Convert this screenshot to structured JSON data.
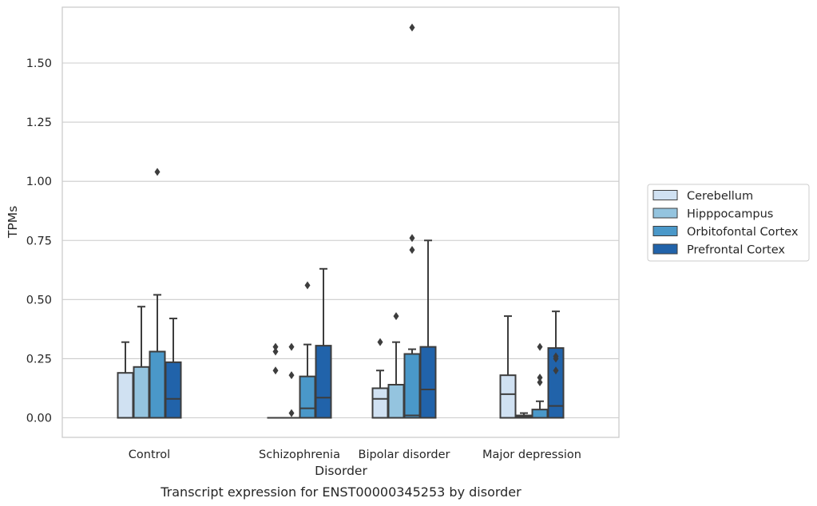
{
  "chart_data": {
    "type": "box",
    "title": "",
    "caption": "Transcript expression for ENST00000345253 by disorder",
    "xlabel": "Disorder",
    "ylabel": "TPMs",
    "ylim": [
      -0.08,
      1.74
    ],
    "yticks": [
      0.0,
      0.25,
      0.5,
      0.75,
      1.0,
      1.25,
      1.5
    ],
    "ytick_labels": [
      "0.00",
      "0.25",
      "0.50",
      "0.75",
      "1.00",
      "1.25",
      "1.50"
    ],
    "categories": [
      "Control",
      "Schizophrenia",
      "Bipolar disorder",
      "Major depression"
    ],
    "grid": "horizontal",
    "legend": "right",
    "series": [
      {
        "name": "Cerebellum",
        "color": "#d0e1f2",
        "boxes": [
          {
            "q1": 0.0,
            "median": 0.0,
            "q3": 0.19,
            "whislo": 0.0,
            "whishi": 0.32,
            "fliers": []
          },
          {
            "q1": 0.0,
            "median": 0.0,
            "q3": 0.0,
            "whislo": 0.0,
            "whishi": 0.0,
            "fliers": [
              0.3,
              0.28,
              0.2
            ]
          },
          {
            "q1": 0.0,
            "median": 0.08,
            "q3": 0.125,
            "whislo": 0.0,
            "whishi": 0.2,
            "fliers": [
              0.32
            ]
          },
          {
            "q1": 0.0,
            "median": 0.1,
            "q3": 0.18,
            "whislo": 0.0,
            "whishi": 0.43,
            "fliers": []
          }
        ]
      },
      {
        "name": "Hipppocampus",
        "color": "#94c4df",
        "boxes": [
          {
            "q1": 0.0,
            "median": 0.0,
            "q3": 0.215,
            "whislo": 0.0,
            "whishi": 0.47,
            "fliers": []
          },
          {
            "q1": 0.0,
            "median": 0.0,
            "q3": 0.0,
            "whislo": 0.0,
            "whishi": 0.0,
            "fliers": [
              0.3,
              0.18,
              0.02
            ]
          },
          {
            "q1": 0.0,
            "median": 0.0,
            "q3": 0.14,
            "whislo": 0.0,
            "whishi": 0.32,
            "fliers": [
              0.43
            ]
          },
          {
            "q1": 0.0,
            "median": 0.005,
            "q3": 0.01,
            "whislo": 0.0,
            "whishi": 0.02,
            "fliers": []
          }
        ]
      },
      {
        "name": "Orbitofontal Cortex",
        "color": "#4a98c9",
        "boxes": [
          {
            "q1": 0.0,
            "median": 0.0,
            "q3": 0.28,
            "whislo": 0.0,
            "whishi": 0.52,
            "fliers": [
              1.04
            ]
          },
          {
            "q1": 0.0,
            "median": 0.04,
            "q3": 0.175,
            "whislo": 0.0,
            "whishi": 0.31,
            "fliers": [
              0.56
            ]
          },
          {
            "q1": 0.0,
            "median": 0.01,
            "q3": 0.27,
            "whislo": 0.0,
            "whishi": 0.29,
            "fliers": [
              0.76,
              0.71,
              1.65
            ]
          },
          {
            "q1": 0.0,
            "median": 0.0,
            "q3": 0.035,
            "whislo": 0.0,
            "whishi": 0.07,
            "fliers": [
              0.3,
              0.17,
              0.15
            ]
          }
        ]
      },
      {
        "name": "Prefrontal Cortex",
        "color": "#2163aa",
        "boxes": [
          {
            "q1": 0.0,
            "median": 0.08,
            "q3": 0.235,
            "whislo": 0.0,
            "whishi": 0.42,
            "fliers": []
          },
          {
            "q1": 0.0,
            "median": 0.085,
            "q3": 0.305,
            "whislo": 0.0,
            "whishi": 0.63,
            "fliers": []
          },
          {
            "q1": 0.0,
            "median": 0.12,
            "q3": 0.3,
            "whislo": 0.0,
            "whishi": 0.75,
            "fliers": []
          },
          {
            "q1": 0.0,
            "median": 0.05,
            "q3": 0.295,
            "whislo": 0.0,
            "whishi": 0.45,
            "fliers": [
              0.26,
              0.25,
              0.2
            ]
          }
        ]
      }
    ]
  }
}
